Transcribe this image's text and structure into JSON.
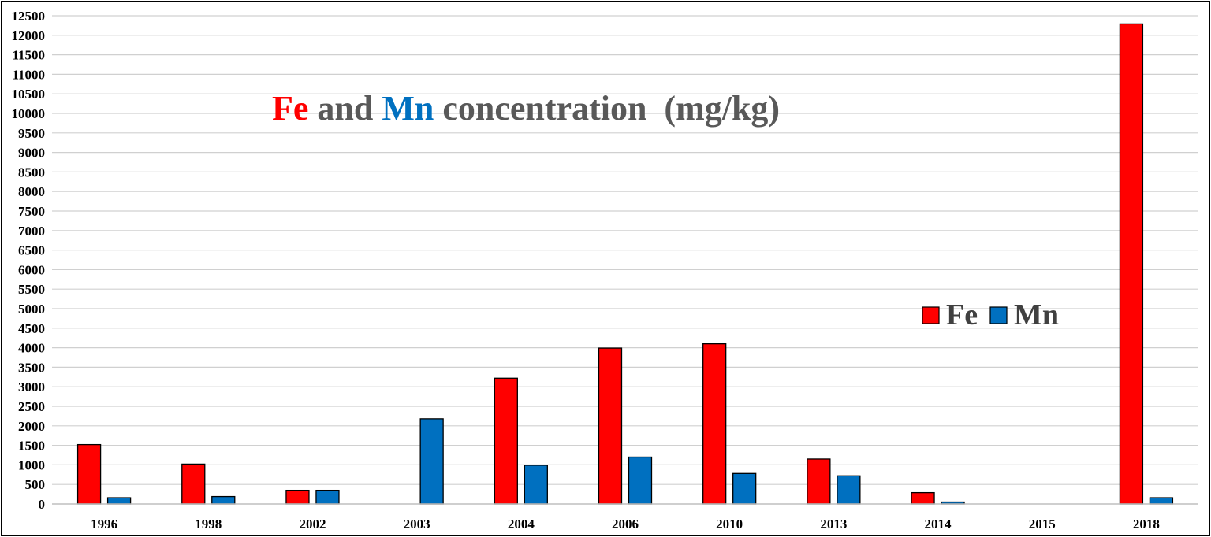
{
  "chart_data": {
    "type": "bar",
    "title": {
      "parts": [
        {
          "text": "Fe",
          "color": "#ff0000"
        },
        {
          "text": " and ",
          "color": "#595959"
        },
        {
          "text": "Mn",
          "color": "#0070c0"
        },
        {
          "text": " concentration  (mg/kg)",
          "color": "#595959"
        }
      ]
    },
    "categories": [
      "1996",
      "1998",
      "2002",
      "2003",
      "2004",
      "2006",
      "2010",
      "2013",
      "2014",
      "2015",
      "2018"
    ],
    "series": [
      {
        "name": "Fe",
        "color": "#ff0000",
        "values": [
          1520,
          1020,
          350,
          null,
          3220,
          3990,
          4100,
          1150,
          290,
          null,
          12290
        ]
      },
      {
        "name": "Mn",
        "color": "#0070c0",
        "values": [
          160,
          190,
          350,
          2180,
          990,
          1200,
          780,
          720,
          50,
          null,
          160
        ]
      }
    ],
    "ylim": [
      0,
      12500
    ],
    "ytick_step": 500,
    "grid": true,
    "legend": "right",
    "xlabel": "",
    "ylabel": ""
  }
}
